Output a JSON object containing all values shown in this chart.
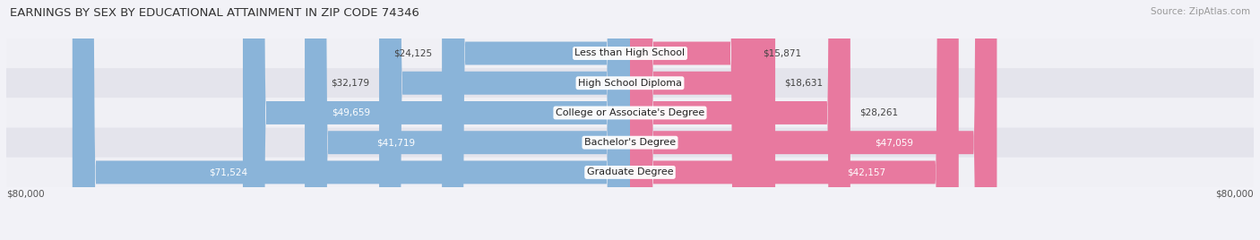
{
  "title": "EARNINGS BY SEX BY EDUCATIONAL ATTAINMENT IN ZIP CODE 74346",
  "source": "Source: ZipAtlas.com",
  "categories": [
    "Less than High School",
    "High School Diploma",
    "College or Associate's Degree",
    "Bachelor's Degree",
    "Graduate Degree"
  ],
  "male_values": [
    24125,
    32179,
    49659,
    41719,
    71524
  ],
  "female_values": [
    15871,
    18631,
    28261,
    47059,
    42157
  ],
  "male_color": "#8ab4d9",
  "female_color": "#e8799f",
  "axis_max": 80000,
  "row_bg_light": "#f0f0f5",
  "row_bg_dark": "#e4e4ec",
  "title_fontsize": 9.5,
  "source_fontsize": 7.5,
  "label_fontsize": 8.0,
  "value_fontsize": 7.5,
  "legend_fontsize": 8.5,
  "axis_label_fontsize": 7.5,
  "figwidth": 14.06,
  "figheight": 2.68,
  "inside_threshold": 35000
}
